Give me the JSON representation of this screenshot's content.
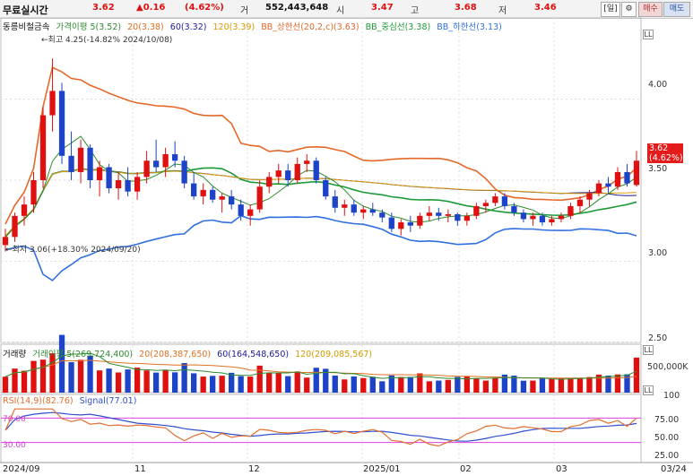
{
  "topbar": {
    "mode": "무료실시간",
    "price": "3.62",
    "change": "▲0.16",
    "change_pct": "(4.62%)",
    "volume_label": "거",
    "volume": "552,443,648",
    "open_label": "시",
    "open": "3.47",
    "high_label": "고",
    "high": "3.68",
    "low_label": "저",
    "low": "3.46",
    "period_button": "[일]",
    "settings_icon": "gear-icon",
    "buy_button": "매수",
    "sell_button": "매도"
  },
  "price_panel": {
    "legend": {
      "name": "동릉비철금속",
      "ma_label": "가격이평 5(3.52)",
      "ma20": "20(3.38)",
      "ma60": "60(3.32)",
      "ma120": "120(3.39)",
      "bb_upper": "BB_상한선(20,2,c)(3.63)",
      "bb_mid": "BB_중심선(3.38)",
      "bb_lower": "BB_하한선(3.13)"
    },
    "high_annotation": "←최고 4.25(-14.82% 2024/10/08)",
    "low_annotation": "←최저 3.06(+18.30% 2024/09/20)",
    "price_tag_value": "3.62",
    "price_tag_pct": "(4.62%)",
    "y_ticks": [
      "4.00",
      "3.50",
      "3.00",
      "2.50"
    ]
  },
  "volume_panel": {
    "legend": {
      "name": "거래량",
      "ma_label": "거래이평 5(269,724,400)",
      "ma20": "20(208,387,650)",
      "ma60": "60(164,548,650)",
      "ma120": "120(209,085,567)"
    },
    "y_ticks": [
      "500,000K"
    ]
  },
  "rsi_panel": {
    "legend": {
      "rsi": "RSI(14,9)(82.76)",
      "signal": "Signal(77.01)"
    },
    "upper_level": "70.00",
    "lower_level": "30.00",
    "y_ticks": [
      "100",
      "75.00",
      "50.00",
      "25.00"
    ]
  },
  "x_axis": {
    "labels": [
      "2024/09",
      "11",
      "12",
      "2025/01",
      "02",
      "03",
      "03/24"
    ]
  },
  "colors": {
    "up": "#e01010",
    "down": "#1d44c8",
    "ma5": "#2e8b2e",
    "ma20": "#e07020",
    "ma60": "#1a1a9a",
    "ma120": "#e0a000",
    "bb_upper": "#e5682a",
    "bb_mid": "#1f9a3a",
    "bb_lower": "#3070e0",
    "rsi": "#e07030",
    "signal": "#3050d0",
    "band": "#e040e0"
  },
  "chart_data": {
    "type": "candlestick",
    "x": [
      "2024/09",
      "11",
      "12",
      "2025/01",
      "02",
      "03",
      "03/24"
    ],
    "price_range": [
      2.5,
      4.5
    ],
    "candles": [
      [
        3.1,
        3.2,
        3.06,
        3.15
      ],
      [
        3.15,
        3.3,
        3.12,
        3.28
      ],
      [
        3.28,
        3.4,
        3.22,
        3.35
      ],
      [
        3.35,
        3.55,
        3.3,
        3.5
      ],
      [
        3.5,
        3.95,
        3.45,
        3.9
      ],
      [
        3.9,
        4.25,
        3.8,
        4.05
      ],
      [
        4.05,
        4.1,
        3.6,
        3.65
      ],
      [
        3.65,
        3.8,
        3.5,
        3.55
      ],
      [
        3.55,
        3.75,
        3.48,
        3.7
      ],
      [
        3.7,
        3.72,
        3.45,
        3.5
      ],
      [
        3.5,
        3.62,
        3.4,
        3.58
      ],
      [
        3.58,
        3.6,
        3.42,
        3.45
      ],
      [
        3.45,
        3.55,
        3.38,
        3.5
      ],
      [
        3.5,
        3.58,
        3.4,
        3.43
      ],
      [
        3.43,
        3.55,
        3.38,
        3.52
      ],
      [
        3.52,
        3.68,
        3.48,
        3.62
      ],
      [
        3.62,
        3.75,
        3.55,
        3.58
      ],
      [
        3.58,
        3.7,
        3.52,
        3.66
      ],
      [
        3.66,
        3.74,
        3.58,
        3.62
      ],
      [
        3.62,
        3.65,
        3.45,
        3.48
      ],
      [
        3.48,
        3.55,
        3.38,
        3.4
      ],
      [
        3.4,
        3.48,
        3.35,
        3.44
      ],
      [
        3.44,
        3.46,
        3.36,
        3.38
      ],
      [
        3.38,
        3.42,
        3.3,
        3.4
      ],
      [
        3.4,
        3.44,
        3.32,
        3.35
      ],
      [
        3.35,
        3.38,
        3.25,
        3.28
      ],
      [
        3.28,
        3.35,
        3.22,
        3.32
      ],
      [
        3.32,
        3.5,
        3.3,
        3.46
      ],
      [
        3.46,
        3.55,
        3.42,
        3.52
      ],
      [
        3.52,
        3.6,
        3.48,
        3.56
      ],
      [
        3.56,
        3.6,
        3.46,
        3.5
      ],
      [
        3.5,
        3.64,
        3.48,
        3.6
      ],
      [
        3.6,
        3.66,
        3.55,
        3.62
      ],
      [
        3.62,
        3.64,
        3.48,
        3.5
      ],
      [
        3.5,
        3.52,
        3.38,
        3.4
      ],
      [
        3.4,
        3.44,
        3.3,
        3.33
      ],
      [
        3.33,
        3.38,
        3.28,
        3.35
      ],
      [
        3.35,
        3.38,
        3.28,
        3.3
      ],
      [
        3.3,
        3.34,
        3.26,
        3.32
      ],
      [
        3.32,
        3.36,
        3.28,
        3.3
      ],
      [
        3.3,
        3.32,
        3.24,
        3.27
      ],
      [
        3.27,
        3.3,
        3.18,
        3.2
      ],
      [
        3.2,
        3.26,
        3.16,
        3.24
      ],
      [
        3.24,
        3.28,
        3.18,
        3.22
      ],
      [
        3.22,
        3.3,
        3.2,
        3.28
      ],
      [
        3.28,
        3.34,
        3.25,
        3.3
      ],
      [
        3.3,
        3.33,
        3.25,
        3.28
      ],
      [
        3.28,
        3.32,
        3.24,
        3.29
      ],
      [
        3.29,
        3.3,
        3.22,
        3.25
      ],
      [
        3.25,
        3.3,
        3.22,
        3.28
      ],
      [
        3.28,
        3.36,
        3.26,
        3.34
      ],
      [
        3.34,
        3.38,
        3.3,
        3.36
      ],
      [
        3.36,
        3.42,
        3.34,
        3.4
      ],
      [
        3.4,
        3.42,
        3.32,
        3.34
      ],
      [
        3.34,
        3.36,
        3.28,
        3.3
      ],
      [
        3.3,
        3.32,
        3.24,
        3.26
      ],
      [
        3.26,
        3.3,
        3.22,
        3.28
      ],
      [
        3.28,
        3.3,
        3.22,
        3.24
      ],
      [
        3.24,
        3.28,
        3.22,
        3.26
      ],
      [
        3.26,
        3.3,
        3.24,
        3.28
      ],
      [
        3.28,
        3.36,
        3.26,
        3.34
      ],
      [
        3.34,
        3.4,
        3.3,
        3.38
      ],
      [
        3.38,
        3.44,
        3.34,
        3.42
      ],
      [
        3.42,
        3.5,
        3.4,
        3.48
      ],
      [
        3.48,
        3.52,
        3.42,
        3.46
      ],
      [
        3.46,
        3.58,
        3.44,
        3.55
      ],
      [
        3.55,
        3.6,
        3.46,
        3.48
      ],
      [
        3.47,
        3.68,
        3.46,
        3.62
      ]
    ],
    "volume_ma_range": [
      0,
      650000000
    ],
    "rsi_range": [
      0,
      100
    ]
  }
}
